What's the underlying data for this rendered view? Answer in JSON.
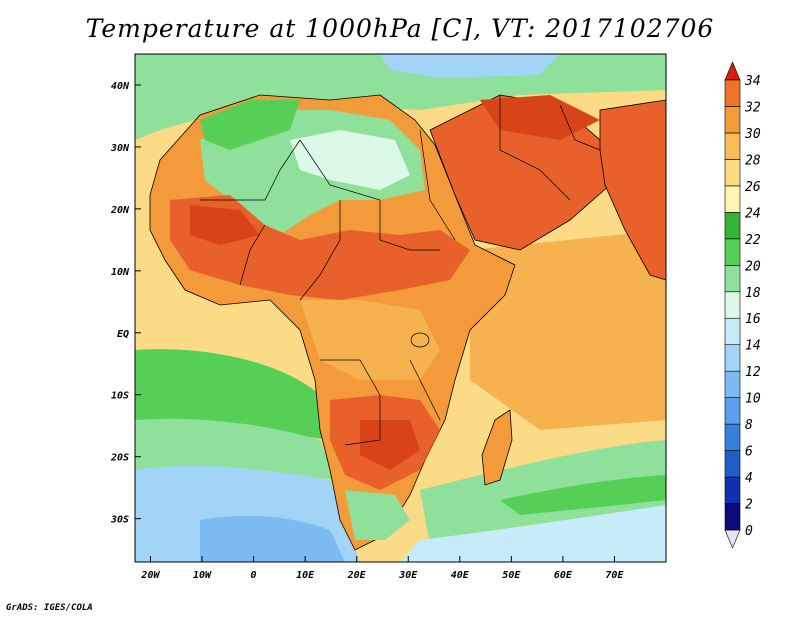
{
  "title": "Temperature at 1000hPa [C], VT: 2017102706",
  "footer": "GrADS: IGES/COLA",
  "map": {
    "lat_range": [
      -37,
      45
    ],
    "lon_range": [
      -23,
      80
    ],
    "lat_ticks": [
      {
        "value": 40,
        "label": "40N"
      },
      {
        "value": 30,
        "label": "30N"
      },
      {
        "value": 20,
        "label": "20N"
      },
      {
        "value": 10,
        "label": "10N"
      },
      {
        "value": 0,
        "label": "EQ"
      },
      {
        "value": -10,
        "label": "10S"
      },
      {
        "value": -20,
        "label": "20S"
      },
      {
        "value": -30,
        "label": "30S"
      }
    ],
    "lon_ticks": [
      {
        "value": -20,
        "label": "20W"
      },
      {
        "value": -10,
        "label": "10W"
      },
      {
        "value": 0,
        "label": "0"
      },
      {
        "value": 10,
        "label": "10E"
      },
      {
        "value": 20,
        "label": "20E"
      },
      {
        "value": 30,
        "label": "30E"
      },
      {
        "value": 40,
        "label": "40E"
      },
      {
        "value": 50,
        "label": "50E"
      },
      {
        "value": 60,
        "label": "60E"
      },
      {
        "value": 70,
        "label": "70E"
      }
    ]
  },
  "colorbar": {
    "levels": [
      "0",
      "2",
      "4",
      "6",
      "8",
      "10",
      "12",
      "14",
      "16",
      "18",
      "20",
      "22",
      "24",
      "26",
      "28",
      "30",
      "32",
      "34"
    ],
    "colors": [
      "#0a0a7a",
      "#1030b0",
      "#1e5ec8",
      "#3a7fe0",
      "#5aa0ec",
      "#7cbaf2",
      "#a2d4f7",
      "#c6ecfa",
      "#dcf8e6",
      "#8ee09a",
      "#56cf56",
      "#34b434",
      "#fcf4b0",
      "#fbdc84",
      "#f7bc58",
      "#f39a3a",
      "#ef7426",
      "#e84818",
      "#d81e10"
    ]
  },
  "legend_colors": {
    "ocean_warm": "#f5b24e",
    "ocean_mid": "#fbdb86",
    "ocean_cool": "#8ee09a",
    "ocean_south": "#a2d4f7",
    "land_hot": "#e8602a",
    "land_warm": "#f39a3a",
    "desert_cool": "#8ee09a",
    "mediterranean": "#56cf56",
    "border": "#000000"
  }
}
